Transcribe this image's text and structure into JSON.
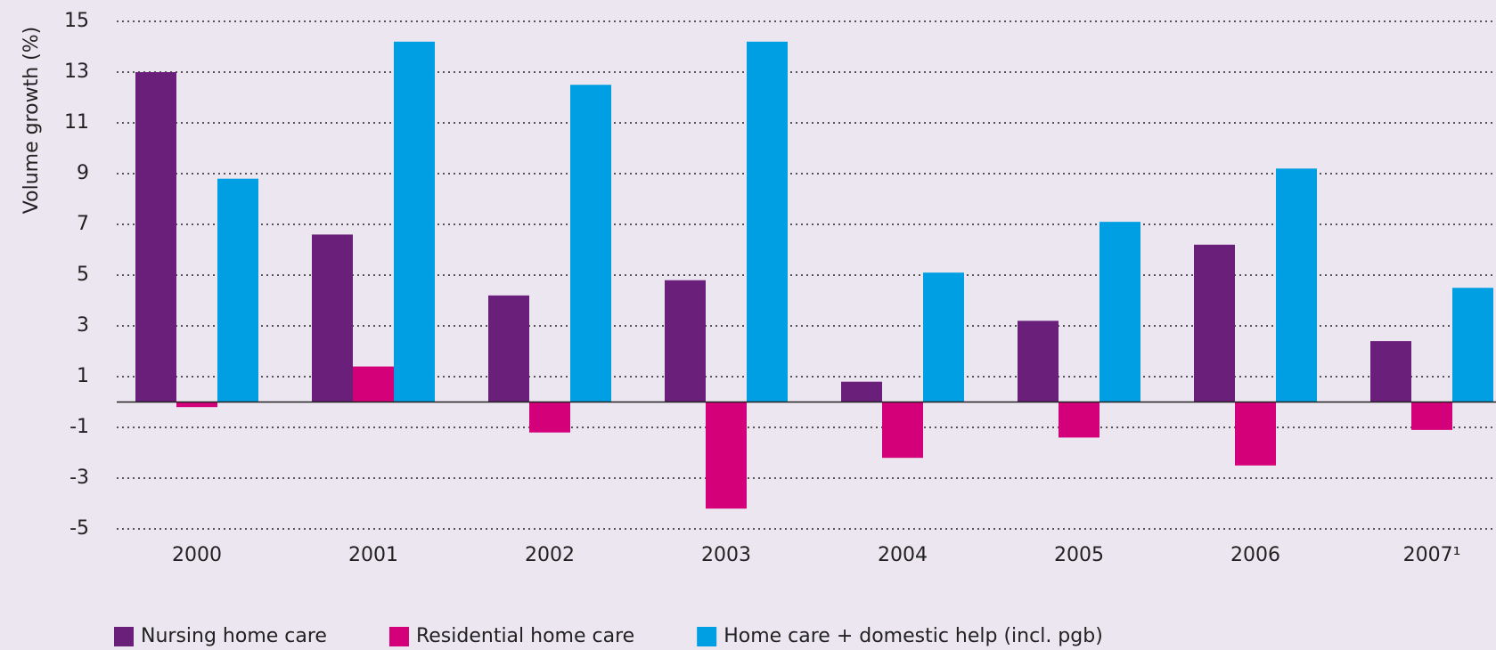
{
  "chart_data": {
    "type": "bar",
    "y_label": "Volume growth (%)",
    "categories": [
      "2000",
      "2001",
      "2002",
      "2003",
      "2004",
      "2005",
      "2006",
      "2007¹"
    ],
    "series": [
      {
        "name": "Nursing home care",
        "color": "#6a1f7a",
        "values": [
          13.0,
          6.6,
          4.2,
          4.8,
          0.8,
          3.2,
          6.2,
          2.4
        ]
      },
      {
        "name": "Residential home care",
        "color": "#d4007a",
        "values": [
          -0.2,
          1.4,
          -1.2,
          -4.2,
          -2.2,
          -1.4,
          -2.5,
          -1.1
        ]
      },
      {
        "name": "Home care + domestic help (incl. pgb)",
        "color": "#009fe3",
        "values": [
          8.8,
          14.2,
          12.5,
          14.2,
          5.1,
          7.1,
          9.2,
          4.5
        ]
      }
    ],
    "ylim": [
      -5,
      15
    ],
    "yticks": [
      -5,
      -3,
      -1,
      1,
      3,
      5,
      7,
      9,
      11,
      13,
      15
    ],
    "grid": true,
    "legend": "bottom-left"
  }
}
